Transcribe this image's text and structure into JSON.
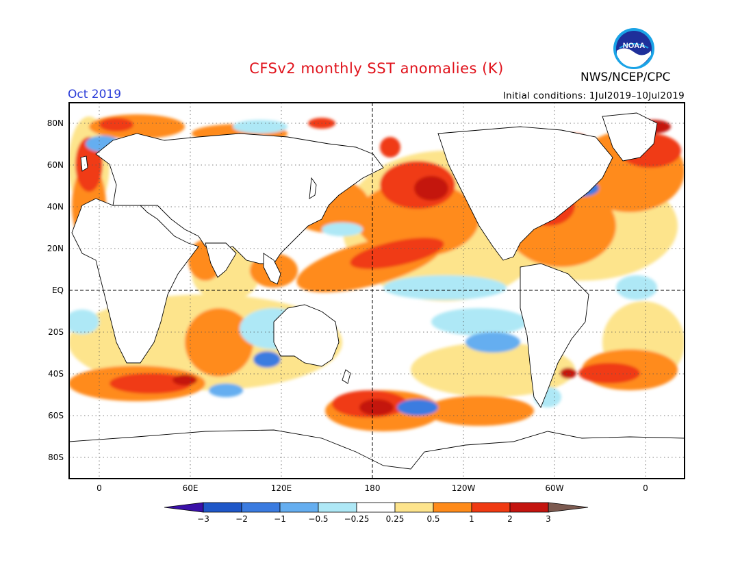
{
  "title": "CFSv2 monthly SST anomalies (K)",
  "agency": "NWS/NCEP/CPC",
  "logo_text": "NOAA",
  "target_month": "Oct 2019",
  "initial_conditions": "Initial conditions: 1Jul2019–10Jul2019",
  "map": {
    "lat_labels": [
      "80N",
      "60N",
      "40N",
      "20N",
      "EQ",
      "20S",
      "40S",
      "60S",
      "80S"
    ],
    "lon_labels": [
      "0",
      "60E",
      "120E",
      "180",
      "120W",
      "60W",
      "0"
    ],
    "reference_lines": [
      "EQ",
      "180"
    ]
  },
  "colorbar": {
    "tick_labels": [
      "−3",
      "−2",
      "−1",
      "−0.5",
      "−0.25",
      "0.25",
      "0.5",
      "1",
      "2",
      "3"
    ],
    "colors": [
      "#3a10a8",
      "#1f57c8",
      "#3a7be0",
      "#65aef0",
      "#aee8f6",
      "#ffffff",
      "#fde48c",
      "#ff8b1a",
      "#f03a12",
      "#c4140f",
      "#a8181b"
    ],
    "extension_colors": {
      "low": "#3a10a8",
      "high": "#7c5a50"
    }
  }
}
